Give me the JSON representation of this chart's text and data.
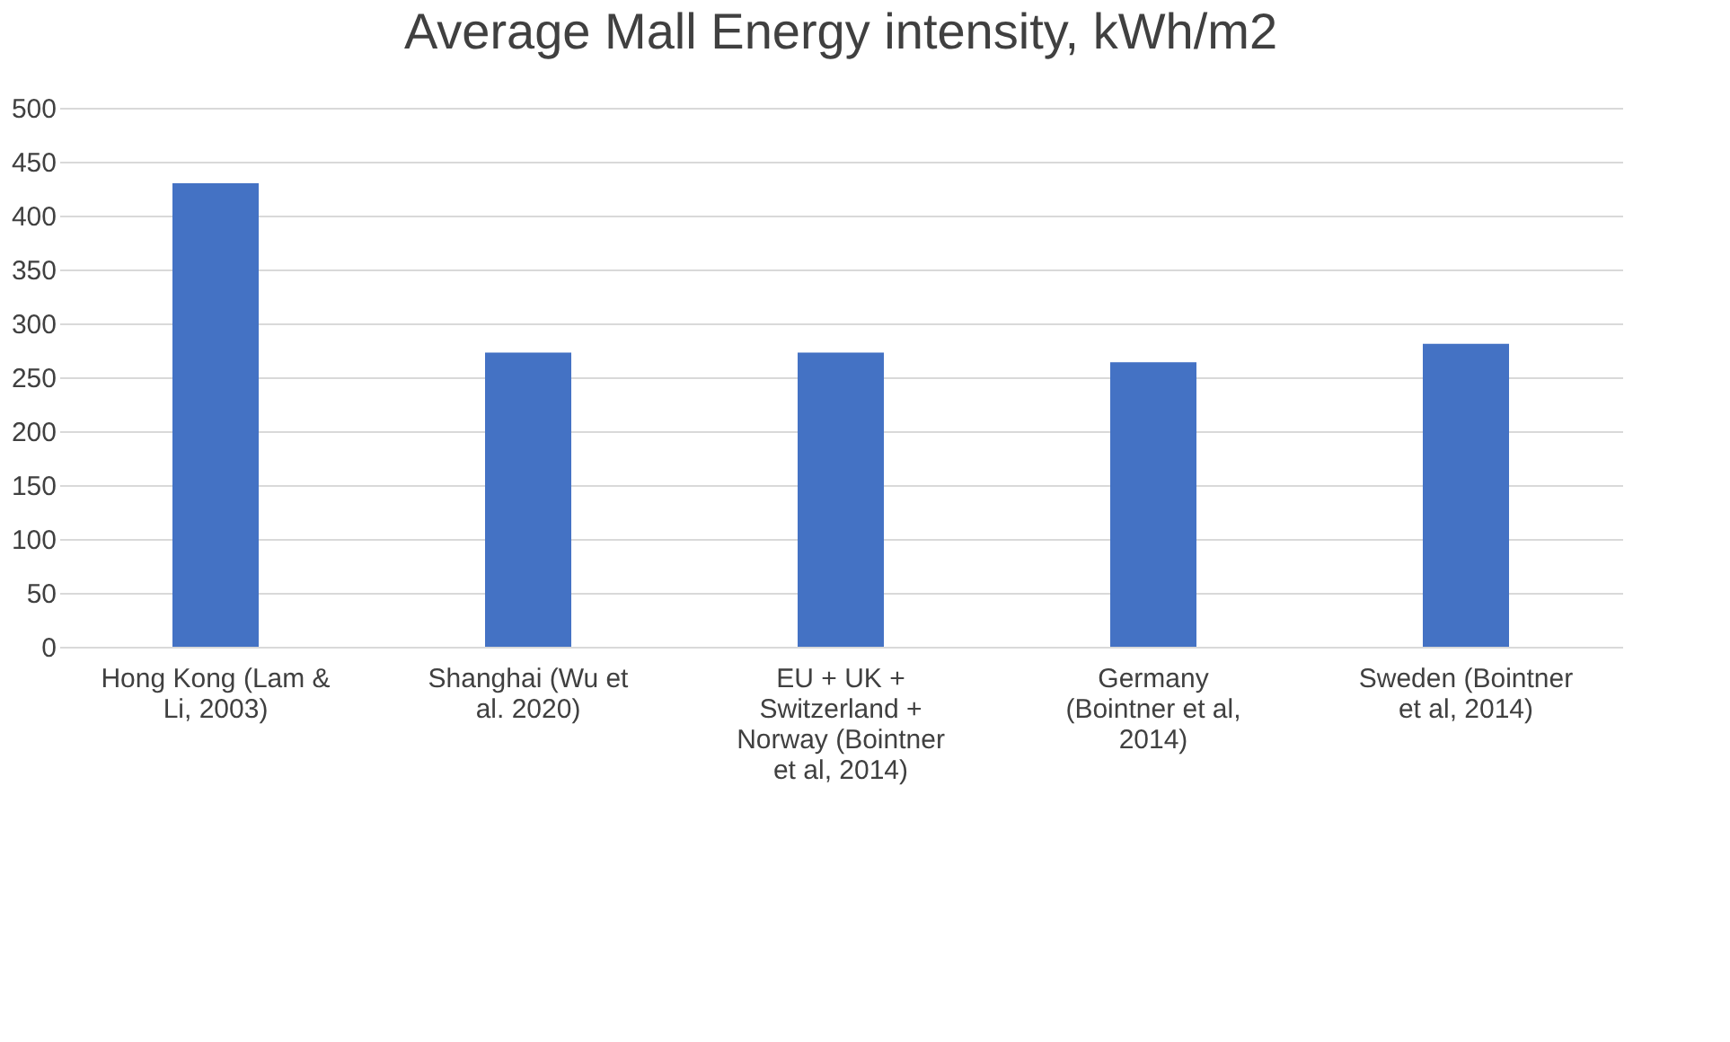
{
  "chart_data": {
    "type": "bar",
    "title": "Average Mall Energy intensity, kWh/m2",
    "categories": [
      "Hong Kong (Lam & Li, 2003)",
      "Shanghai (Wu et al. 2020)",
      "EU + UK + Switzerland + Norway (Bointner et al, 2014)",
      "Germany (Bointner et al, 2014)",
      "Sweden (Bointner et al, 2014)"
    ],
    "values": [
      430,
      273,
      273,
      264,
      281
    ],
    "color": "#4472c4",
    "ylim": [
      0,
      500
    ],
    "yticks": [
      0,
      50,
      100,
      150,
      200,
      250,
      300,
      350,
      400,
      450,
      500
    ],
    "grid": "y"
  }
}
